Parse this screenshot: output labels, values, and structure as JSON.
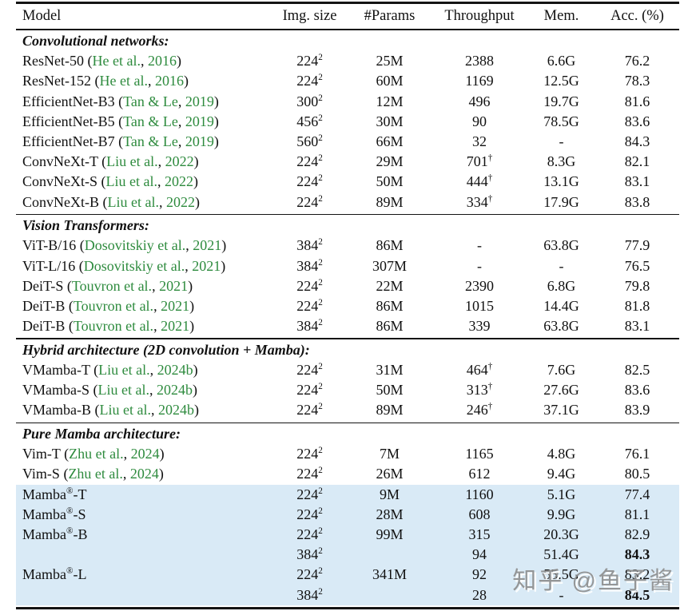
{
  "colors": {
    "citation_green": "#2e8b3e",
    "highlight_blue": "#d9eaf6",
    "rule_black": "#141414",
    "watermark_gray": "#8f8f8f"
  },
  "header": {
    "columns": [
      "Model",
      "Img. size",
      "#Params",
      "Throughput",
      "Mem.",
      "Acc. (%)"
    ]
  },
  "punctuation": {
    "cite_open": "(",
    "cite_sep": ", ",
    "cite_close": ")"
  },
  "sections": [
    {
      "header": "Convolutional networks:",
      "rows": [
        {
          "model": "ResNet-50",
          "cite_authors": "He et al.",
          "cite_year": "2016",
          "img_size": "224",
          "img_sup": "2",
          "params": "25M",
          "throughput": "2388",
          "throughput_sup": "",
          "mem": "6.6G",
          "acc": "76.2",
          "acc_bold": false,
          "highlight": false
        },
        {
          "model": "ResNet-152",
          "cite_authors": "He et al.",
          "cite_year": "2016",
          "img_size": "224",
          "img_sup": "2",
          "params": "60M",
          "throughput": "1169",
          "throughput_sup": "",
          "mem": "12.5G",
          "acc": "78.3",
          "acc_bold": false,
          "highlight": false
        },
        {
          "model": "EfficientNet-B3",
          "cite_authors": "Tan & Le",
          "cite_year": "2019",
          "img_size": "300",
          "img_sup": "2",
          "params": "12M",
          "throughput": "496",
          "throughput_sup": "",
          "mem": "19.7G",
          "acc": "81.6",
          "acc_bold": false,
          "highlight": false
        },
        {
          "model": "EfficientNet-B5",
          "cite_authors": "Tan & Le",
          "cite_year": "2019",
          "img_size": "456",
          "img_sup": "2",
          "params": "30M",
          "throughput": "90",
          "throughput_sup": "",
          "mem": "78.5G",
          "acc": "83.6",
          "acc_bold": false,
          "highlight": false
        },
        {
          "model": "EfficientNet-B7",
          "cite_authors": "Tan & Le",
          "cite_year": "2019",
          "img_size": "560",
          "img_sup": "2",
          "params": "66M",
          "throughput": "32",
          "throughput_sup": "",
          "mem": "-",
          "acc": "84.3",
          "acc_bold": false,
          "highlight": false
        },
        {
          "model": "ConvNeXt-T",
          "cite_authors": "Liu et al.",
          "cite_year": "2022",
          "img_size": "224",
          "img_sup": "2",
          "params": "29M",
          "throughput": "701",
          "throughput_sup": "†",
          "mem": "8.3G",
          "acc": "82.1",
          "acc_bold": false,
          "highlight": false
        },
        {
          "model": "ConvNeXt-S",
          "cite_authors": "Liu et al.",
          "cite_year": "2022",
          "img_size": "224",
          "img_sup": "2",
          "params": "50M",
          "throughput": "444",
          "throughput_sup": "†",
          "mem": "13.1G",
          "acc": "83.1",
          "acc_bold": false,
          "highlight": false
        },
        {
          "model": "ConvNeXt-B",
          "cite_authors": "Liu et al.",
          "cite_year": "2022",
          "img_size": "224",
          "img_sup": "2",
          "params": "89M",
          "throughput": "334",
          "throughput_sup": "†",
          "mem": "17.9G",
          "acc": "83.8",
          "acc_bold": false,
          "highlight": false
        }
      ]
    },
    {
      "header": "Vision Transformers:",
      "rows": [
        {
          "model": "ViT-B/16",
          "cite_authors": "Dosovitskiy et al.",
          "cite_year": "2021",
          "img_size": "384",
          "img_sup": "2",
          "params": "86M",
          "throughput": "-",
          "throughput_sup": "",
          "mem": "63.8G",
          "acc": "77.9",
          "acc_bold": false,
          "highlight": false
        },
        {
          "model": "ViT-L/16",
          "cite_authors": "Dosovitskiy et al.",
          "cite_year": "2021",
          "img_size": "384",
          "img_sup": "2",
          "params": "307M",
          "throughput": "-",
          "throughput_sup": "",
          "mem": "-",
          "acc": "76.5",
          "acc_bold": false,
          "highlight": false
        },
        {
          "model": "DeiT-S",
          "cite_authors": "Touvron et al.",
          "cite_year": "2021",
          "img_size": "224",
          "img_sup": "2",
          "params": "22M",
          "throughput": "2390",
          "throughput_sup": "",
          "mem": "6.8G",
          "acc": "79.8",
          "acc_bold": false,
          "highlight": false
        },
        {
          "model": "DeiT-B",
          "cite_authors": "Touvron et al.",
          "cite_year": "2021",
          "img_size": "224",
          "img_sup": "2",
          "params": "86M",
          "throughput": "1015",
          "throughput_sup": "",
          "mem": "14.4G",
          "acc": "81.8",
          "acc_bold": false,
          "highlight": false
        },
        {
          "model": "DeiT-B",
          "cite_authors": "Touvron et al.",
          "cite_year": "2021",
          "img_size": "384",
          "img_sup": "2",
          "params": "86M",
          "throughput": "339",
          "throughput_sup": "",
          "mem": "63.8G",
          "acc": "83.1",
          "acc_bold": false,
          "highlight": false
        }
      ]
    },
    {
      "header": "Hybrid architecture (2D convolution + Mamba):",
      "rows": [
        {
          "model": "VMamba-T",
          "cite_authors": "Liu et al.",
          "cite_year": "2024b",
          "img_size": "224",
          "img_sup": "2",
          "params": "31M",
          "throughput": "464",
          "throughput_sup": "†",
          "mem": "7.6G",
          "acc": "82.5",
          "acc_bold": false,
          "highlight": false
        },
        {
          "model": "VMamba-S",
          "cite_authors": "Liu et al.",
          "cite_year": "2024b",
          "img_size": "224",
          "img_sup": "2",
          "params": "50M",
          "throughput": "313",
          "throughput_sup": "†",
          "mem": "27.6G",
          "acc": "83.6",
          "acc_bold": false,
          "highlight": false
        },
        {
          "model": "VMamba-B",
          "cite_authors": "Liu et al.",
          "cite_year": "2024b",
          "img_size": "224",
          "img_sup": "2",
          "params": "89M",
          "throughput": "246",
          "throughput_sup": "†",
          "mem": "37.1G",
          "acc": "83.9",
          "acc_bold": false,
          "highlight": false
        }
      ]
    },
    {
      "header": "Pure Mamba architecture:",
      "rows": [
        {
          "model": "Vim-T",
          "cite_authors": "Zhu et al.",
          "cite_year": "2024",
          "img_size": "224",
          "img_sup": "2",
          "params": "7M",
          "throughput": "1165",
          "throughput_sup": "",
          "mem": "4.8G",
          "acc": "76.1",
          "acc_bold": false,
          "highlight": false
        },
        {
          "model": "Vim-S",
          "cite_authors": "Zhu et al.",
          "cite_year": "2024",
          "img_size": "224",
          "img_sup": "2",
          "params": "26M",
          "throughput": "612",
          "throughput_sup": "",
          "mem": "9.4G",
          "acc": "80.5",
          "acc_bold": false,
          "highlight": false
        },
        {
          "model": "Mamba",
          "model_sup": "®",
          "model_suffix": "-T",
          "cite_authors": "",
          "cite_year": "",
          "img_size": "224",
          "img_sup": "2",
          "params": "9M",
          "throughput": "1160",
          "throughput_sup": "",
          "mem": "5.1G",
          "acc": "77.4",
          "acc_bold": false,
          "highlight": true
        },
        {
          "model": "Mamba",
          "model_sup": "®",
          "model_suffix": "-S",
          "cite_authors": "",
          "cite_year": "",
          "img_size": "224",
          "img_sup": "2",
          "params": "28M",
          "throughput": "608",
          "throughput_sup": "",
          "mem": "9.9G",
          "acc": "81.1",
          "acc_bold": false,
          "highlight": true
        },
        {
          "model": "Mamba",
          "model_sup": "®",
          "model_suffix": "-B",
          "cite_authors": "",
          "cite_year": "",
          "img_size": "224",
          "img_sup": "2",
          "params": "99M",
          "throughput": "315",
          "throughput_sup": "",
          "mem": "20.3G",
          "acc": "82.9",
          "acc_bold": false,
          "highlight": true
        },
        {
          "model": "",
          "cite_authors": "",
          "cite_year": "",
          "img_size": "384",
          "img_sup": "2",
          "params": "",
          "throughput": "94",
          "throughput_sup": "",
          "mem": "51.4G",
          "acc": "84.3",
          "acc_bold": true,
          "highlight": true
        },
        {
          "model": "Mamba",
          "model_sup": "®",
          "model_suffix": "-L",
          "cite_authors": "",
          "cite_year": "",
          "img_size": "224",
          "img_sup": "2",
          "params": "341M",
          "throughput": "92",
          "throughput_sup": "",
          "mem": "55.5G",
          "acc": "83.2",
          "acc_bold": false,
          "highlight": true
        },
        {
          "model": "",
          "cite_authors": "",
          "cite_year": "",
          "img_size": "384",
          "img_sup": "2",
          "params": "",
          "throughput": "28",
          "throughput_sup": "",
          "mem": "-",
          "acc": "84.5",
          "acc_bold": true,
          "highlight": true
        }
      ]
    }
  ],
  "watermark": {
    "text": "知乎 @鱼子酱"
  }
}
